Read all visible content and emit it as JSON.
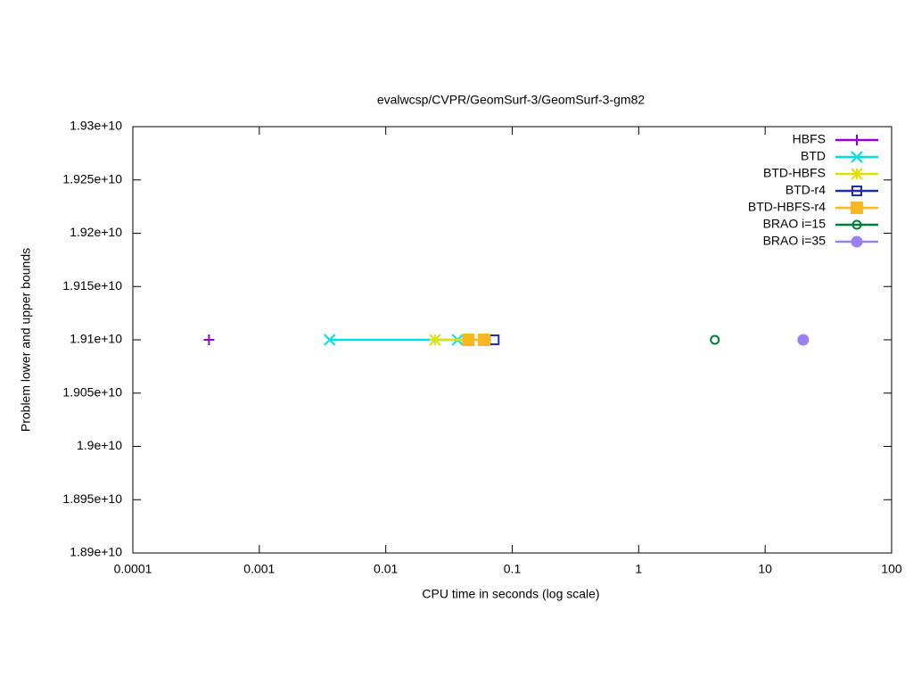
{
  "chart_data": {
    "type": "line",
    "title": "evalwcsp/CVPR/GeomSurf-3/GeomSurf-3-gm82",
    "x_label": "CPU time in seconds (log scale)",
    "y_label": "Problem lower and upper bounds",
    "x_scale": "log",
    "xlim": [
      0.0001,
      100
    ],
    "xticks": [
      0.0001,
      0.001,
      0.01,
      0.1,
      1,
      10,
      100
    ],
    "ylim": [
      18900000000,
      19300000000
    ],
    "yticks": [
      {
        "value": 18900000000,
        "label": "1.89e+10"
      },
      {
        "value": 18950000000,
        "label": "1.895e+10"
      },
      {
        "value": 19000000000,
        "label": "1.9e+10"
      },
      {
        "value": 19050000000,
        "label": "1.905e+10"
      },
      {
        "value": 19100000000,
        "label": "1.91e+10"
      },
      {
        "value": 19150000000,
        "label": "1.915e+10"
      },
      {
        "value": 19200000000,
        "label": "1.92e+10"
      },
      {
        "value": 19250000000,
        "label": "1.925e+10"
      },
      {
        "value": 19300000000,
        "label": "1.93e+10"
      }
    ],
    "legend_position": "top-right",
    "series": [
      {
        "name": "HBFS",
        "color": "#9400d3",
        "marker": "plus",
        "x": [
          0.0004
        ],
        "values": [
          19100000000
        ]
      },
      {
        "name": "BTD",
        "color": "#00e0e0",
        "marker": "cross",
        "x": [
          0.0036,
          0.037
        ],
        "values": [
          19100000000,
          19100000000
        ]
      },
      {
        "name": "BTD-HBFS",
        "color": "#e0e000",
        "marker": "star",
        "x": [
          0.0245,
          0.06
        ],
        "values": [
          19100000000,
          19100000000
        ]
      },
      {
        "name": "BTD-r4",
        "color": "#1f2fb0",
        "marker": "box-open",
        "x": [
          0.072
        ],
        "values": [
          19100000000
        ]
      },
      {
        "name": "BTD-HBFS-r4",
        "color": "#f5b820",
        "marker": "box",
        "x": [
          0.045,
          0.06
        ],
        "values": [
          19100000000,
          19100000000
        ]
      },
      {
        "name": "BRAO i=15",
        "color": "#007b3a",
        "marker": "circle-open",
        "x": [
          4
        ],
        "values": [
          19100000000
        ]
      },
      {
        "name": "BRAO i=35",
        "color": "#9b80f0",
        "marker": "circle",
        "x": [
          20
        ],
        "values": [
          19100000000
        ]
      }
    ]
  }
}
